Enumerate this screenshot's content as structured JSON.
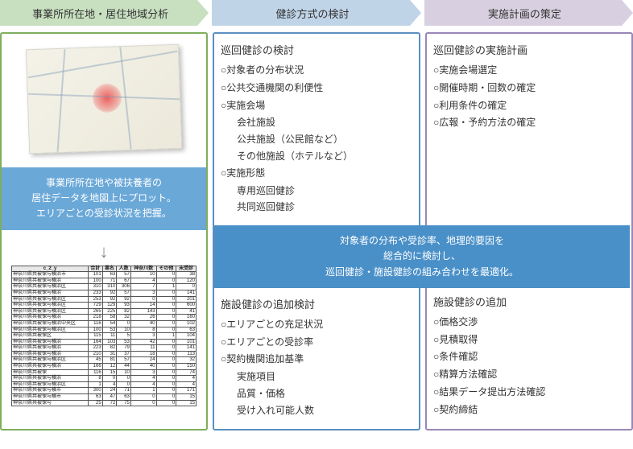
{
  "colors": {
    "step1_bg": "#c8e0c0",
    "step2_bg": "#c0d4e8",
    "step3_bg": "#d8d0e0",
    "col1_border": "#7fae5c",
    "col2_border": "#5a8fc0",
    "col3_border": "#9a87b8",
    "banner1_bg": "#6aa8d8",
    "banner2_bg": "#4a90c8"
  },
  "steps": {
    "s1": "事業所所在地・居住地域分析",
    "s2": "健診方式の検討",
    "s3": "実施計画の策定"
  },
  "col1": {
    "banner": "事業所所在地や被扶養者の\n居住データを地図上にプロット。\nエリアごとの受診状況を把握。",
    "table_headers": [
      "c_2_y",
      "合計",
      "業名",
      "人数",
      "神奈川数",
      "その他",
      "未受診"
    ],
    "table_rows": [
      [
        "神奈川県共被保与横浜市",
        "101",
        "63",
        "57",
        "10",
        "0",
        "38"
      ],
      [
        "神奈川県共被保与横浜",
        "100",
        "71",
        "67",
        "4",
        "0",
        "120"
      ],
      [
        "神奈川県共被保与横浜区",
        "310",
        "310",
        "306",
        "7",
        "1",
        "0"
      ],
      [
        "神奈川県共被保与横浜",
        "233",
        "92",
        "57",
        "3",
        "0",
        "141"
      ],
      [
        "神奈川県共被保与横浜区",
        "253",
        "92",
        "92",
        "0",
        "0",
        "201"
      ],
      [
        "神奈川県共被保与横浜区",
        "729",
        "129",
        "93",
        "14",
        "0",
        "600"
      ],
      [
        "神奈川県共被保与横浜区",
        "265",
        "225",
        "82",
        "143",
        "0",
        "41"
      ],
      [
        "神奈川県共被保与横浜",
        "218",
        "58",
        "32",
        "26",
        "0",
        "160"
      ],
      [
        "神奈川県共被保与横浜中央区",
        "116",
        "54",
        "0",
        "40",
        "0",
        "102"
      ],
      [
        "神奈川県共被保与横浜区",
        "100",
        "53",
        "10",
        "8",
        "0",
        "63"
      ],
      [
        "神奈川県共被保区",
        "115",
        "11",
        "5",
        "3",
        "1",
        "104"
      ],
      [
        "神奈川県共被保与横浜",
        "164",
        "103",
        "53",
        "42",
        "0",
        "101"
      ],
      [
        "神奈川県共被保与横浜",
        "223",
        "82",
        "79",
        "11",
        "0",
        "141"
      ],
      [
        "神奈川県共被保与横浜",
        "210",
        "31",
        "37",
        "18",
        "0",
        "113"
      ],
      [
        "神奈川県共被保与横浜区",
        "45",
        "81",
        "57",
        "24",
        "0",
        "32"
      ],
      [
        "神奈川県共被保与横浜",
        "166",
        "12",
        "44",
        "40",
        "0",
        "150"
      ],
      [
        "神奈川県共被保",
        "116",
        "15",
        "10",
        "3",
        "0",
        "74"
      ],
      [
        "神奈川県共被保与横浜",
        "8",
        "0",
        "0",
        "4",
        "0",
        "4"
      ],
      [
        "神奈川県共被保与横浜区",
        "1",
        "4",
        "0",
        "4",
        "0",
        "4"
      ],
      [
        "神奈川県共被保与横市",
        "300",
        "24",
        "71",
        "1",
        "0",
        "171"
      ],
      [
        "神奈川県共被保与横市",
        "63",
        "47",
        "63",
        "0",
        "0",
        "15"
      ],
      [
        "神奈川県共被保与",
        "25",
        "72",
        "75",
        "0",
        "0",
        "15"
      ]
    ]
  },
  "col2": {
    "top_title": "巡回健診の検討",
    "top_items": [
      {
        "t": "○対象者の分布状況"
      },
      {
        "t": "○公共交通機関の利便性"
      },
      {
        "t": "○実施会場",
        "sub": [
          "会社施設",
          "公共施設（公民館など）",
          "その他施設（ホテルなど）"
        ]
      },
      {
        "t": "○実施形態",
        "sub": [
          "専用巡回健診",
          "共同巡回健診"
        ]
      }
    ],
    "banner": "対象者の分布や受診率、地理的要因を\n総合的に検討し、\n巡回健診・施設健診の組み合わせを最適化。",
    "bottom_title": "施設健診の追加検討",
    "bottom_items": [
      {
        "t": "○エリアごとの充足状況"
      },
      {
        "t": "○エリアごとの受診率"
      },
      {
        "t": "○契約機関追加基準",
        "sub": [
          "実施項目",
          "品質・価格",
          "受け入れ可能人数"
        ]
      }
    ]
  },
  "col3": {
    "top_title": "巡回健診の実施計画",
    "top_items": [
      "○実施会場選定",
      "○開催時期・回数の確定",
      "○利用条件の確定",
      "○広報・予約方法の確定"
    ],
    "bottom_title": "施設健診の追加",
    "bottom_items": [
      "○価格交渉",
      "○見積取得",
      "○条件確認",
      "○精算方法確認",
      "○結果データ提出方法確認",
      "○契約締結"
    ]
  }
}
